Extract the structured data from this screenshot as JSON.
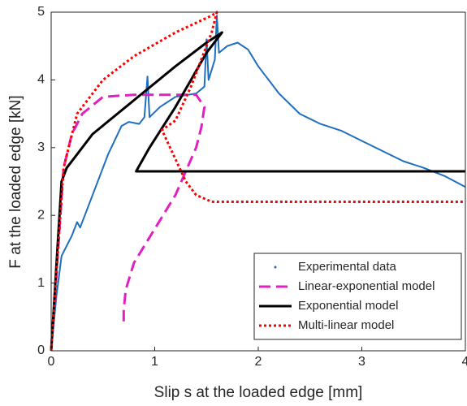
{
  "chart_data": {
    "type": "line",
    "xlabel": "Slip s at the loaded edge [mm]",
    "ylabel": "F at the loaded edge [kN]",
    "xlim": [
      0,
      4
    ],
    "xticks": [
      0,
      1,
      2,
      3,
      4
    ],
    "ylim": [
      0,
      5
    ],
    "yticks": [
      0,
      1,
      2,
      3,
      4,
      5
    ],
    "grid": false,
    "legend": "lower right",
    "series": [
      {
        "name": "Experimental data",
        "color": "#1f6fbf",
        "style": "solid",
        "x": [
          0,
          0.05,
          0.1,
          0.2,
          0.25,
          0.28,
          0.4,
          0.55,
          0.68,
          0.75,
          0.85,
          0.9,
          0.93,
          0.95,
          1.05,
          1.2,
          1.4,
          1.48,
          1.5,
          1.52,
          1.58,
          1.6,
          1.62,
          1.7,
          1.8,
          1.9,
          2.0,
          2.2,
          2.4,
          2.6,
          2.8,
          3.0,
          3.2,
          3.4,
          3.6,
          3.8,
          4.0
        ],
        "values": [
          0,
          0.8,
          1.4,
          1.7,
          1.9,
          1.82,
          2.3,
          2.9,
          3.32,
          3.38,
          3.35,
          3.45,
          4.05,
          3.45,
          3.6,
          3.75,
          3.8,
          3.9,
          4.6,
          4.0,
          4.3,
          4.95,
          4.4,
          4.5,
          4.55,
          4.45,
          4.2,
          3.8,
          3.5,
          3.35,
          3.25,
          3.1,
          2.95,
          2.8,
          2.7,
          2.58,
          2.42
        ]
      },
      {
        "name": "Linear-exponential model",
        "color": "#e020c0",
        "style": "dashed",
        "x": [
          0,
          0.12,
          0.2,
          0.3,
          0.5,
          0.8,
          1.1,
          1.4,
          1.48,
          1.45,
          1.4,
          1.2,
          1.0,
          0.8,
          0.72,
          0.7,
          0.7
        ],
        "values": [
          0,
          2.7,
          3.2,
          3.5,
          3.75,
          3.78,
          3.78,
          3.78,
          3.6,
          3.3,
          3.0,
          2.3,
          1.8,
          1.3,
          0.9,
          0.6,
          0.38
        ]
      },
      {
        "name": "Exponential model",
        "color": "#000000",
        "style": "solid",
        "x": [
          0,
          0.1,
          0.15,
          0.4,
          0.8,
          1.2,
          1.5,
          1.65,
          1.5,
          1.2,
          0.95,
          0.82,
          0.9,
          4.0
        ],
        "values": [
          0,
          2.5,
          2.7,
          3.2,
          3.7,
          4.2,
          4.55,
          4.7,
          4.4,
          3.6,
          3.0,
          2.65,
          2.65,
          2.65
        ]
      },
      {
        "name": "Multi-linear model",
        "color": "#ff0000",
        "style": "dotted",
        "x": [
          0,
          0.12,
          0.25,
          0.5,
          0.8,
          1.2,
          1.55,
          1.6,
          1.55,
          1.35,
          1.2,
          1.07,
          1.3,
          1.4,
          1.55,
          4.0
        ],
        "values": [
          0,
          2.7,
          3.5,
          4.0,
          4.35,
          4.7,
          4.95,
          5.0,
          4.7,
          3.9,
          3.4,
          3.26,
          2.5,
          2.3,
          2.2,
          2.2
        ]
      }
    ]
  }
}
